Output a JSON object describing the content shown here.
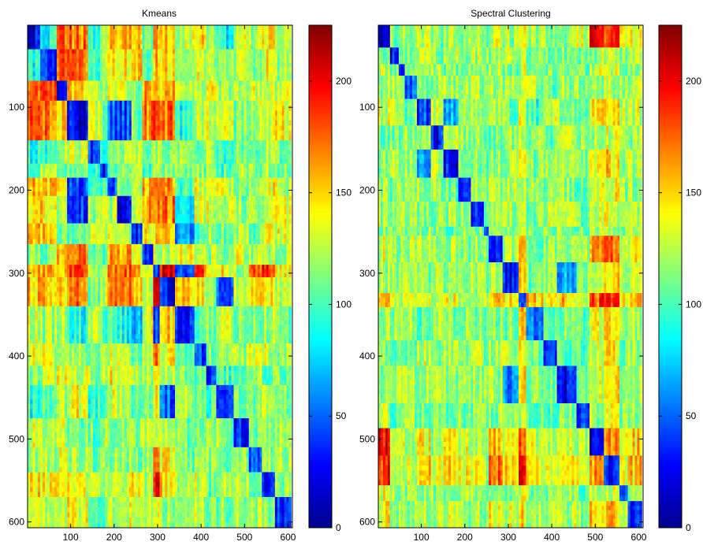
{
  "chart_data": [
    {
      "type": "heatmap",
      "title": "Kmeans",
      "xlabel": "",
      "ylabel": "",
      "x_ticks": [
        100,
        200,
        300,
        400,
        500,
        600
      ],
      "y_ticks": [
        100,
        200,
        300,
        400,
        500,
        600
      ],
      "xlim": [
        1,
        610
      ],
      "ylim": [
        1,
        607
      ],
      "y_direction": "top-down",
      "block_boundaries": [
        1,
        30,
        68,
        92,
        140,
        168,
        185,
        207,
        240,
        265,
        290,
        305,
        340,
        385,
        412,
        435,
        475,
        510,
        540,
        570,
        607
      ],
      "block_values": [
        [
          25,
          90,
          175,
          170,
          95,
          110,
          150,
          155,
          160,
          115,
          160,
          155,
          130,
          140,
          120,
          90,
          130,
          120,
          145,
          125
        ],
        [
          90,
          30,
          170,
          170,
          100,
          120,
          150,
          145,
          150,
          110,
          160,
          150,
          120,
          130,
          130,
          110,
          120,
          120,
          140,
          120
        ],
        [
          175,
          170,
          25,
          150,
          120,
          110,
          130,
          130,
          110,
          160,
          150,
          150,
          130,
          120,
          140,
          120,
          125,
          130,
          130,
          130
        ],
        [
          170,
          170,
          150,
          25,
          130,
          110,
          45,
          45,
          110,
          170,
          180,
          175,
          90,
          120,
          130,
          140,
          110,
          120,
          130,
          140
        ],
        [
          95,
          100,
          120,
          130,
          40,
          100,
          110,
          120,
          120,
          110,
          120,
          110,
          125,
          105,
          120,
          100,
          110,
          105,
          120,
          110
        ],
        [
          110,
          120,
          110,
          110,
          100,
          40,
          110,
          120,
          120,
          100,
          130,
          120,
          110,
          110,
          120,
          100,
          120,
          110,
          115,
          110
        ],
        [
          150,
          150,
          130,
          45,
          110,
          110,
          40,
          120,
          130,
          160,
          170,
          165,
          100,
          130,
          140,
          130,
          120,
          120,
          135,
          130
        ],
        [
          155,
          145,
          130,
          45,
          120,
          120,
          120,
          30,
          130,
          160,
          175,
          170,
          90,
          130,
          135,
          130,
          115,
          120,
          130,
          130
        ],
        [
          160,
          150,
          110,
          110,
          120,
          120,
          130,
          130,
          30,
          140,
          150,
          150,
          60,
          110,
          120,
          110,
          120,
          110,
          140,
          130
        ],
        [
          115,
          110,
          160,
          170,
          110,
          100,
          160,
          160,
          140,
          35,
          130,
          125,
          135,
          130,
          120,
          120,
          130,
          120,
          125,
          120
        ],
        [
          160,
          160,
          150,
          180,
          120,
          130,
          170,
          175,
          150,
          130,
          40,
          200,
          50,
          175,
          130,
          140,
          120,
          180,
          190,
          140
        ],
        [
          155,
          150,
          150,
          175,
          110,
          120,
          165,
          170,
          150,
          125,
          200,
          30,
          150,
          140,
          120,
          50,
          130,
          140,
          150,
          120
        ],
        [
          130,
          120,
          130,
          90,
          125,
          110,
          100,
          90,
          60,
          135,
          50,
          150,
          35,
          110,
          115,
          120,
          110,
          110,
          120,
          110
        ],
        [
          140,
          130,
          120,
          120,
          105,
          110,
          130,
          130,
          110,
          130,
          175,
          140,
          110,
          40,
          110,
          120,
          115,
          130,
          130,
          120
        ],
        [
          120,
          130,
          140,
          130,
          120,
          120,
          140,
          135,
          120,
          120,
          130,
          120,
          115,
          110,
          35,
          100,
          110,
          120,
          110,
          115
        ],
        [
          90,
          110,
          120,
          140,
          100,
          100,
          130,
          130,
          110,
          120,
          140,
          50,
          120,
          120,
          100,
          30,
          115,
          110,
          120,
          110
        ],
        [
          130,
          120,
          125,
          110,
          110,
          120,
          120,
          115,
          120,
          130,
          120,
          130,
          110,
          115,
          110,
          115,
          35,
          110,
          120,
          120
        ],
        [
          120,
          120,
          130,
          120,
          105,
          110,
          120,
          120,
          110,
          120,
          180,
          140,
          110,
          130,
          120,
          110,
          110,
          40,
          110,
          120
        ],
        [
          145,
          140,
          130,
          130,
          120,
          115,
          135,
          130,
          140,
          125,
          190,
          150,
          120,
          130,
          110,
          120,
          120,
          110,
          40,
          110
        ],
        [
          125,
          120,
          130,
          140,
          110,
          110,
          130,
          130,
          130,
          120,
          140,
          120,
          110,
          120,
          115,
          110,
          120,
          120,
          110,
          35
        ]
      ],
      "colorbar": {
        "colormap": "jet",
        "range": [
          0,
          225
        ],
        "ticks": [
          0,
          50,
          100,
          150,
          200
        ]
      }
    },
    {
      "type": "heatmap",
      "title": "Spectral Clustering",
      "xlabel": "",
      "ylabel": "",
      "x_ticks": [
        100,
        200,
        300,
        400,
        500,
        600
      ],
      "y_ticks": [
        100,
        200,
        300,
        400,
        500,
        600
      ],
      "xlim": [
        1,
        610
      ],
      "ylim": [
        1,
        607
      ],
      "y_direction": "top-down",
      "block_boundaries": [
        1,
        28,
        48,
        62,
        90,
        122,
        151,
        185,
        214,
        244,
        255,
        287,
        324,
        341,
        381,
        412,
        457,
        487,
        520,
        556,
        575,
        607
      ],
      "block_values": [
        [
          25,
          110,
          125,
          120,
          130,
          110,
          120,
          125,
          120,
          115,
          130,
          120,
          150,
          120,
          120,
          120,
          130,
          200,
          190,
          130,
          140
        ],
        [
          110,
          30,
          115,
          120,
          120,
          110,
          120,
          110,
          120,
          115,
          115,
          120,
          130,
          115,
          110,
          115,
          105,
          120,
          125,
          115,
          120
        ],
        [
          125,
          115,
          40,
          120,
          120,
          115,
          110,
          115,
          120,
          110,
          120,
          110,
          125,
          115,
          110,
          120,
          110,
          125,
          130,
          115,
          120
        ],
        [
          120,
          120,
          120,
          45,
          110,
          115,
          120,
          120,
          120,
          115,
          120,
          115,
          130,
          120,
          110,
          120,
          115,
          120,
          125,
          120,
          120
        ],
        [
          130,
          120,
          120,
          110,
          40,
          120,
          60,
          120,
          120,
          115,
          120,
          110,
          140,
          100,
          130,
          120,
          110,
          140,
          150,
          120,
          125
        ],
        [
          110,
          110,
          115,
          115,
          120,
          35,
          120,
          120,
          110,
          115,
          110,
          120,
          130,
          120,
          110,
          120,
          115,
          120,
          130,
          115,
          120
        ],
        [
          120,
          120,
          110,
          120,
          60,
          120,
          30,
          110,
          120,
          110,
          120,
          120,
          140,
          110,
          120,
          120,
          110,
          135,
          150,
          120,
          125
        ],
        [
          125,
          110,
          115,
          120,
          120,
          120,
          110,
          40,
          120,
          115,
          120,
          120,
          125,
          120,
          110,
          115,
          110,
          130,
          140,
          120,
          120
        ],
        [
          120,
          120,
          120,
          120,
          120,
          110,
          120,
          120,
          40,
          115,
          120,
          120,
          125,
          115,
          120,
          120,
          110,
          125,
          130,
          120,
          120
        ],
        [
          115,
          115,
          110,
          115,
          115,
          115,
          110,
          115,
          115,
          45,
          115,
          115,
          125,
          115,
          110,
          115,
          110,
          120,
          125,
          115,
          120
        ],
        [
          130,
          115,
          120,
          120,
          120,
          110,
          120,
          120,
          120,
          115,
          35,
          120,
          150,
          115,
          120,
          120,
          115,
          160,
          170,
          115,
          140
        ],
        [
          120,
          120,
          110,
          115,
          110,
          120,
          120,
          120,
          120,
          115,
          120,
          35,
          150,
          110,
          120,
          60,
          110,
          130,
          150,
          115,
          130
        ],
        [
          150,
          130,
          125,
          130,
          140,
          130,
          140,
          125,
          125,
          125,
          150,
          150,
          40,
          150,
          140,
          150,
          130,
          180,
          190,
          140,
          150
        ],
        [
          120,
          115,
          115,
          120,
          100,
          120,
          110,
          120,
          115,
          115,
          115,
          110,
          150,
          50,
          110,
          115,
          110,
          130,
          140,
          115,
          125
        ],
        [
          120,
          110,
          110,
          110,
          130,
          110,
          120,
          110,
          120,
          110,
          120,
          120,
          140,
          110,
          35,
          110,
          105,
          130,
          140,
          110,
          120
        ],
        [
          120,
          115,
          120,
          120,
          120,
          120,
          120,
          115,
          120,
          115,
          120,
          60,
          150,
          115,
          110,
          30,
          110,
          130,
          140,
          115,
          125
        ],
        [
          130,
          105,
          110,
          115,
          110,
          115,
          110,
          110,
          110,
          110,
          115,
          110,
          130,
          110,
          105,
          110,
          40,
          120,
          130,
          110,
          115
        ],
        [
          200,
          120,
          125,
          120,
          140,
          120,
          135,
          130,
          125,
          120,
          160,
          130,
          180,
          130,
          130,
          130,
          120,
          20,
          170,
          130,
          150
        ],
        [
          190,
          125,
          130,
          125,
          150,
          130,
          150,
          140,
          130,
          125,
          170,
          150,
          190,
          140,
          140,
          140,
          130,
          170,
          30,
          130,
          150
        ],
        [
          130,
          115,
          115,
          120,
          120,
          115,
          120,
          120,
          120,
          115,
          115,
          115,
          140,
          115,
          110,
          115,
          110,
          130,
          130,
          40,
          120
        ],
        [
          140,
          120,
          120,
          120,
          125,
          120,
          125,
          120,
          120,
          120,
          140,
          130,
          150,
          125,
          120,
          125,
          115,
          150,
          150,
          120,
          40
        ]
      ],
      "colorbar": {
        "colormap": "jet",
        "range": [
          0,
          225
        ],
        "ticks": [
          0,
          50,
          100,
          150,
          200
        ]
      }
    }
  ]
}
